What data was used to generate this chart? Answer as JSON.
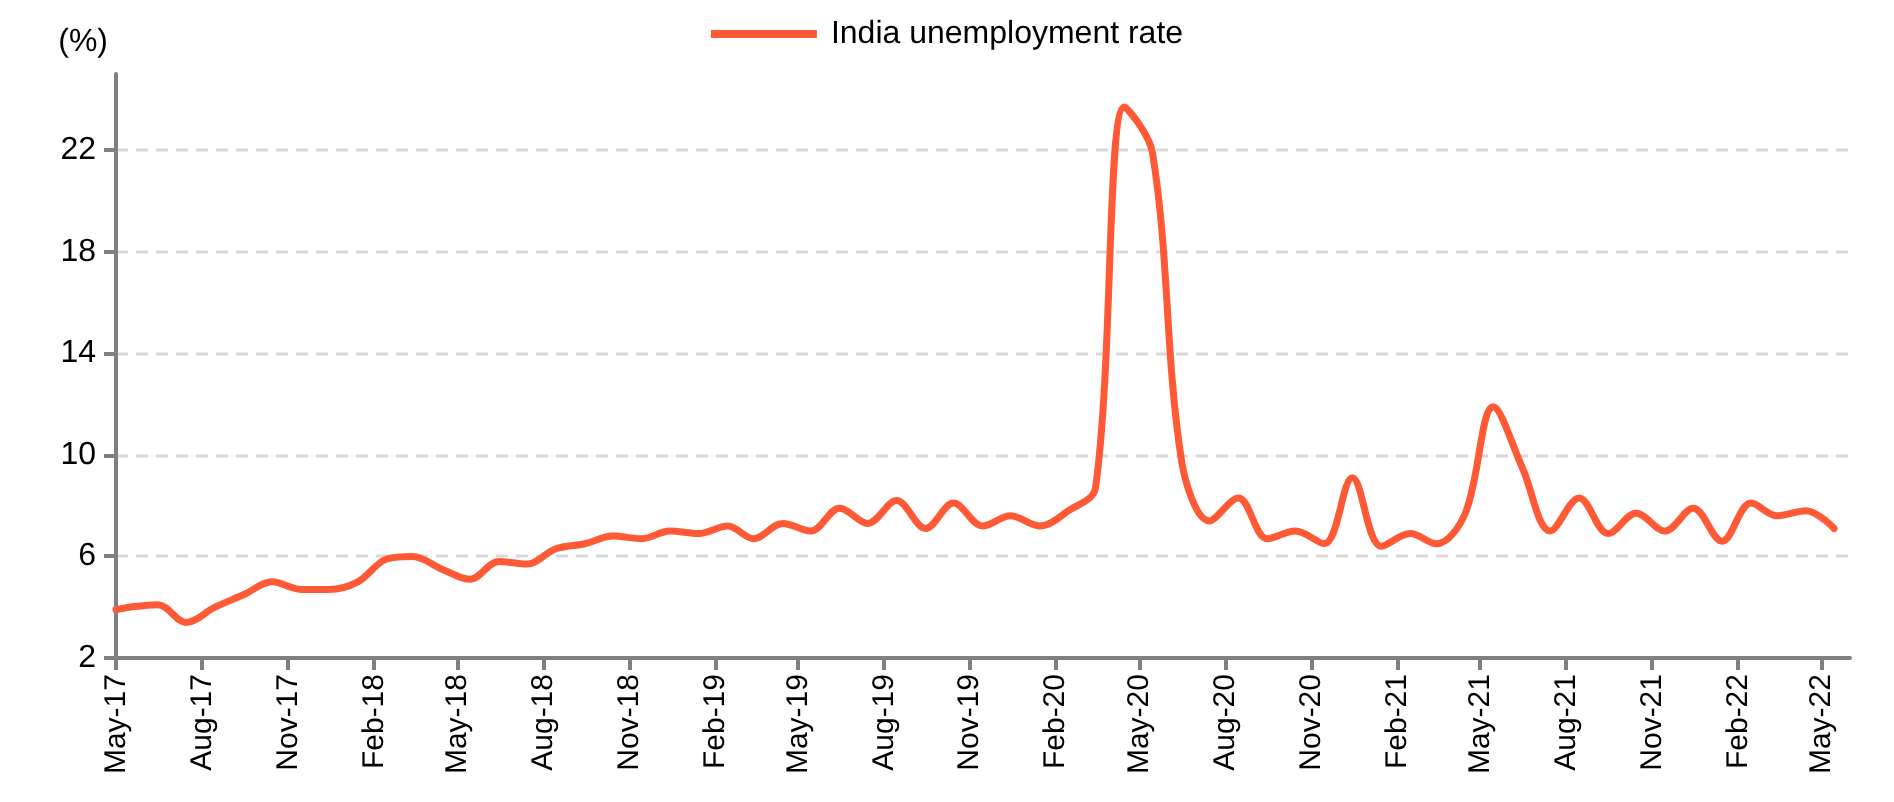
{
  "chart_data": {
    "type": "line",
    "ylabel": "(%)",
    "legend": "top",
    "grid": "y",
    "x": [
      "2017-05-01",
      "2017-05-15",
      "2017-06-15",
      "2017-07-15",
      "2017-08-15",
      "2017-09-15",
      "2017-10-15",
      "2017-11-15",
      "2017-12-15",
      "2018-01-15",
      "2018-02-15",
      "2018-03-15",
      "2018-04-15",
      "2018-05-15",
      "2018-06-15",
      "2018-07-15",
      "2018-08-15",
      "2018-09-15",
      "2018-10-15",
      "2018-11-15",
      "2018-12-15",
      "2019-01-15",
      "2019-02-15",
      "2019-03-15",
      "2019-04-15",
      "2019-05-15",
      "2019-06-15",
      "2019-07-15",
      "2019-08-15",
      "2019-09-15",
      "2019-10-15",
      "2019-11-15",
      "2019-12-15",
      "2020-01-15",
      "2020-02-15",
      "2020-03-15",
      "2020-04-15",
      "2020-05-15",
      "2020-06-15",
      "2020-07-15",
      "2020-08-15",
      "2020-09-15",
      "2020-10-15",
      "2020-11-15",
      "2020-12-15",
      "2021-01-15",
      "2021-02-15",
      "2021-03-15",
      "2021-04-15",
      "2021-05-15",
      "2021-06-15",
      "2021-07-15",
      "2021-08-15",
      "2021-09-15",
      "2021-10-15",
      "2021-11-15",
      "2021-12-15",
      "2022-01-15",
      "2022-02-15",
      "2022-03-15",
      "2022-04-15",
      "2022-05-15"
    ],
    "series": [
      {
        "name": "India unemployment rate",
        "color": "#ff5a35",
        "values": [
          3.9,
          4.0,
          4.1,
          3.4,
          4.0,
          4.5,
          5.0,
          4.7,
          4.7,
          5.0,
          5.9,
          6.0,
          5.5,
          5.1,
          5.8,
          5.7,
          6.3,
          6.5,
          6.8,
          6.7,
          7.0,
          6.9,
          7.2,
          6.7,
          7.3,
          7.0,
          7.9,
          7.3,
          8.2,
          7.1,
          8.1,
          7.2,
          7.6,
          7.2,
          7.8,
          8.7,
          23.7,
          21.9,
          9.8,
          7.4,
          8.3,
          6.7,
          7.0,
          6.5,
          9.1,
          6.4,
          6.9,
          6.5,
          7.7,
          11.9,
          9.5,
          7.0,
          8.3,
          6.9,
          7.7,
          7.0,
          7.9,
          6.6,
          8.1,
          7.6,
          7.8,
          7.1
        ]
      }
    ],
    "xlim": [
      "2017-05",
      "2022-06"
    ],
    "xticks": [
      {
        "value": "2017-05",
        "label": "May-17"
      },
      {
        "value": "2017-08",
        "label": "Aug-17"
      },
      {
        "value": "2017-11",
        "label": "Nov-17"
      },
      {
        "value": "2018-02",
        "label": "Feb-18"
      },
      {
        "value": "2018-05",
        "label": "May-18"
      },
      {
        "value": "2018-08",
        "label": "Aug-18"
      },
      {
        "value": "2018-11",
        "label": "Nov-18"
      },
      {
        "value": "2019-02",
        "label": "Feb-19"
      },
      {
        "value": "2019-05",
        "label": "May-19"
      },
      {
        "value": "2019-08",
        "label": "Aug-19"
      },
      {
        "value": "2019-11",
        "label": "Nov-19"
      },
      {
        "value": "2020-02",
        "label": "Feb-20"
      },
      {
        "value": "2020-05",
        "label": "May-20"
      },
      {
        "value": "2020-08",
        "label": "Aug-20"
      },
      {
        "value": "2020-11",
        "label": "Nov-20"
      },
      {
        "value": "2021-02",
        "label": "Feb-21"
      },
      {
        "value": "2021-05",
        "label": "May-21"
      },
      {
        "value": "2021-08",
        "label": "Aug-21"
      },
      {
        "value": "2021-11",
        "label": "Nov-21"
      },
      {
        "value": "2022-02",
        "label": "Feb-22"
      },
      {
        "value": "2022-05",
        "label": "May-22"
      }
    ],
    "ylim": [
      2,
      25
    ],
    "yticks": [
      2,
      6,
      10,
      14,
      18,
      22
    ]
  }
}
